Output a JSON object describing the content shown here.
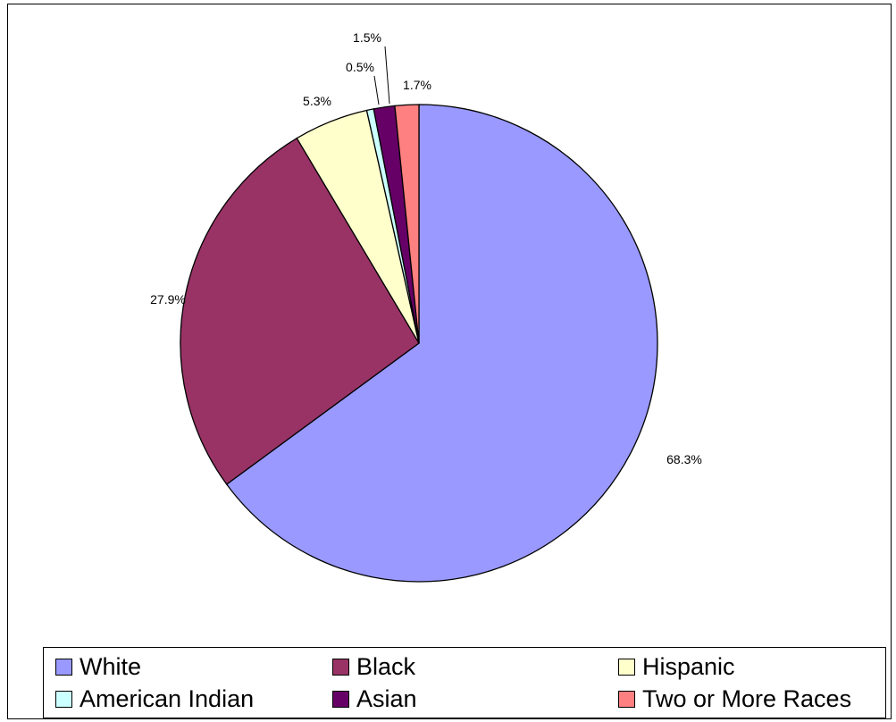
{
  "chart_data": {
    "type": "pie",
    "slices": [
      {
        "name": "White",
        "value": 68.3,
        "label": "68.3%",
        "color": "#9999ff"
      },
      {
        "name": "Black",
        "value": 27.9,
        "label": "27.9%",
        "color": "#993366"
      },
      {
        "name": "Hispanic",
        "value": 5.3,
        "label": "5.3%",
        "color": "#ffffcc"
      },
      {
        "name": "American Indian",
        "value": 0.5,
        "label": "0.5%",
        "color": "#ccffff"
      },
      {
        "name": "Asian",
        "value": 1.5,
        "label": "1.5%",
        "color": "#660066"
      },
      {
        "name": "Two or More Races",
        "value": 1.7,
        "label": "1.7%",
        "color": "#ff8080"
      }
    ],
    "start_angle": "12 o'clock",
    "direction": "clockwise",
    "legend_placement": "bottom"
  }
}
